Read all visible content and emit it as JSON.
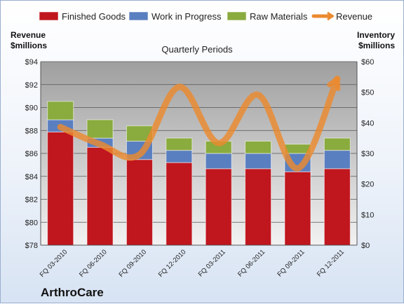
{
  "chart_data": {
    "type": "bar",
    "subtype": "stacked-bar-with-line",
    "title": "Quarterly Periods",
    "brand": "ArthroCare",
    "categories": [
      "FQ 03-2010",
      "FQ 06-2010",
      "FQ 09-2010",
      "FQ 12-2010",
      "FQ 03-2011",
      "FQ 06-2011",
      "FQ 09-2011",
      "FQ 12-2011"
    ],
    "series": [
      {
        "name": "Finished Goods",
        "axis": "right",
        "color": "#c0161e",
        "values": [
          37,
          32,
          28,
          27,
          25,
          25,
          24,
          25
        ]
      },
      {
        "name": "Work in Progress",
        "axis": "right",
        "color": "#5a7fc0",
        "values": [
          4,
          3,
          6,
          4,
          5,
          5,
          6,
          6
        ]
      },
      {
        "name": "Raw Materials",
        "axis": "right",
        "color": "#8aab3e",
        "values": [
          6,
          6,
          5,
          4,
          4,
          4,
          3,
          4
        ]
      },
      {
        "name": "Revenue",
        "axis": "left",
        "type": "line",
        "color": "#ec8a2e",
        "values": [
          88.3,
          86.8,
          85.9,
          91.8,
          86.9,
          91.1,
          84.7,
          92.5
        ]
      }
    ],
    "left_axis": {
      "label_line1": "Revenue",
      "label_line2": "$millions",
      "min": 78,
      "max": 94,
      "step": 2,
      "prefix": "$"
    },
    "right_axis": {
      "label_line1": "Inventory",
      "label_line2": "$millions",
      "min": 0,
      "max": 60,
      "step": 10,
      "prefix": "$"
    },
    "legend_position": "top",
    "grid": true
  }
}
